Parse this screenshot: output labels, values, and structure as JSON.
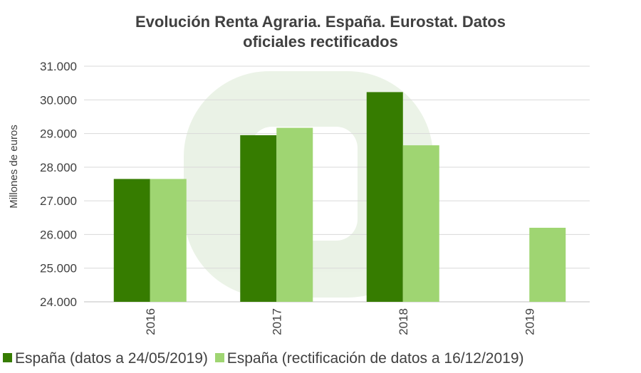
{
  "chart_data": {
    "type": "bar",
    "title_lines": [
      "Evolución Renta Agraria.  España. Eurostat. Datos",
      "oficiales rectificados"
    ],
    "ylabel": "Millones de euros",
    "xlabel": "",
    "ylim": [
      24000,
      31000
    ],
    "yticks": [
      24000,
      25000,
      26000,
      27000,
      28000,
      29000,
      30000,
      31000
    ],
    "ytick_labels": [
      "24.000",
      "25.000",
      "26.000",
      "27.000",
      "28.000",
      "29.000",
      "30.000",
      "31.000"
    ],
    "categories": [
      "2016",
      "2017",
      "2018",
      "2019"
    ],
    "grid": true,
    "legend_position": "bottom",
    "series": [
      {
        "name": "España (datos a 24/05/2019)",
        "color": "#367c00",
        "values": [
          27650,
          28950,
          30230,
          null
        ]
      },
      {
        "name": "España (rectificación de datos a 16/12/2019)",
        "color": "#9fd572",
        "values": [
          27650,
          29170,
          28650,
          26200
        ]
      }
    ]
  }
}
